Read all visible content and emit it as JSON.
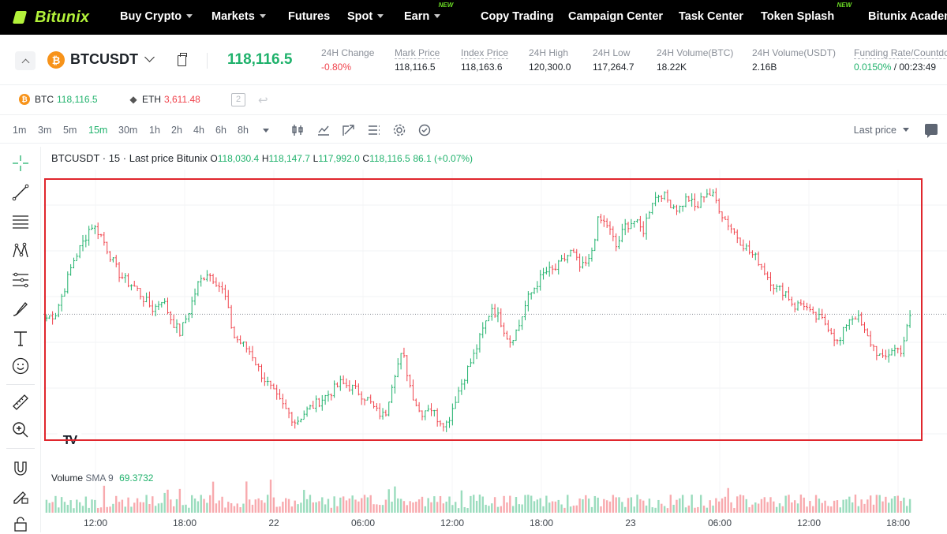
{
  "nav": {
    "logo": "Bitunix",
    "items": [
      {
        "label": "Buy Crypto",
        "caret": true,
        "new": false
      },
      {
        "label": "Markets",
        "caret": true,
        "new": false
      },
      {
        "label": "Futures",
        "caret": false,
        "new": false
      },
      {
        "label": "Spot",
        "caret": true,
        "new": false
      },
      {
        "label": "Earn",
        "caret": true,
        "new": true
      },
      {
        "label": "Copy Trading",
        "caret": false,
        "new": false
      },
      {
        "label": "Campaign Center",
        "caret": false,
        "new": false
      },
      {
        "label": "Task Center",
        "caret": false,
        "new": false
      },
      {
        "label": "Token Splash",
        "caret": false,
        "new": true
      },
      {
        "label": "Bitunix Academy",
        "caret": false,
        "new": false
      }
    ],
    "new_badge": "NEW"
  },
  "ticker": {
    "symbol": "BTCUSDT",
    "coin_glyph": "₿",
    "last_price": "118,116.5",
    "stats": [
      {
        "label": "24H Change",
        "value": "-0.80%",
        "tone": "red",
        "dashed": false
      },
      {
        "label": "Mark Price",
        "value": "118,116.5",
        "tone": "",
        "dashed": true
      },
      {
        "label": "Index Price",
        "value": "118,163.6",
        "tone": "",
        "dashed": true
      },
      {
        "label": "24H High",
        "value": "120,300.0",
        "tone": "",
        "dashed": false
      },
      {
        "label": "24H Low",
        "value": "117,264.7",
        "tone": "",
        "dashed": false
      },
      {
        "label": "24H Volume(BTC)",
        "value": "18.22K",
        "tone": "",
        "dashed": false
      },
      {
        "label": "24H Volume(USDT)",
        "value": "2.16B",
        "tone": "",
        "dashed": false
      },
      {
        "label": "Funding Rate/Countdown",
        "value": "0.0150%",
        "value2": "/ 00:23:49",
        "tone": "green",
        "dashed": true
      }
    ]
  },
  "favorites": {
    "btc": {
      "name": "BTC",
      "price": "118,116.5"
    },
    "eth": {
      "name": "ETH",
      "price": "3,611.48"
    },
    "box_label": "2"
  },
  "toolbar": {
    "timeframes": [
      "1m",
      "3m",
      "5m",
      "15m",
      "30m",
      "1h",
      "2h",
      "4h",
      "6h",
      "8h"
    ],
    "active": "15m",
    "price_type": "Last price",
    "icons": [
      "candle-style-icon",
      "indicators-icon",
      "drawing-icon",
      "templates-icon",
      "settings-icon",
      "screenshot-icon"
    ]
  },
  "legend": {
    "title": "BTCUSDT · 15 · Last price Bitunix",
    "o_label": "O",
    "o": "118,030.4",
    "h_label": "H",
    "h": "118,147.7",
    "l_label": "L",
    "l": "117,992.0",
    "c_label": "C",
    "c": "118,116.5",
    "change": "86.1 (+0.07%)"
  },
  "volume_legend": {
    "label": "Volume",
    "sma": "SMA 9",
    "value": "69.3732"
  },
  "time_axis": [
    "12:00",
    "18:00",
    "22",
    "06:00",
    "12:00",
    "18:00",
    "23",
    "06:00",
    "12:00",
    "18:00"
  ],
  "colors": {
    "up": "#20b26c",
    "down": "#f0434c",
    "accent": "#b3f23a",
    "highlight": "#e0262d"
  },
  "chart_data": {
    "type": "candlestick",
    "interval": "15m",
    "current_price": 118116.5,
    "x_labels": [
      "12:00",
      "18:00",
      "22",
      "06:00",
      "12:00",
      "18:00",
      "23",
      "06:00",
      "12:00",
      "18:00"
    ],
    "close_path": [
      118090,
      118120,
      118300,
      118500,
      118620,
      118760,
      118700,
      118560,
      118420,
      118350,
      118310,
      118220,
      118150,
      118230,
      118080,
      117980,
      118140,
      118330,
      118420,
      118360,
      118260,
      117960,
      117900,
      117840,
      117700,
      117600,
      117500,
      117420,
      117340,
      117410,
      117460,
      117510,
      117560,
      117620,
      117600,
      117560,
      117510,
      117420,
      117380,
      117680,
      117840,
      117560,
      117400,
      117460,
      117360,
      117330,
      117520,
      117680,
      117820,
      118000,
      118170,
      118070,
      117920,
      118020,
      118220,
      118330,
      118420,
      118430,
      118500,
      118570,
      118440,
      118500,
      118800,
      118760,
      118600,
      118750,
      118790,
      118710,
      118930,
      118990,
      118920,
      118870,
      118960,
      118870,
      119000,
      118960,
      118820,
      118730,
      118640,
      118560,
      118500,
      118390,
      118300,
      118280,
      118170,
      118200,
      118100,
      118080,
      118020,
      117890,
      118080,
      118110,
      117970,
      117870,
      117780,
      117870,
      117860,
      118090
    ]
  }
}
